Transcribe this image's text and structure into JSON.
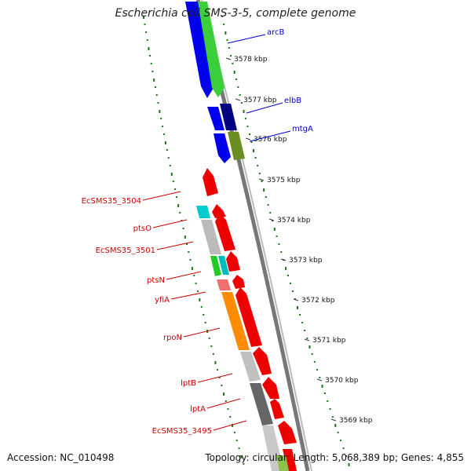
{
  "title": "Escherichia coli SMS-3-5, complete genome",
  "footer": {
    "accession": "Accession: NC_010498",
    "stats": "Topology: circular; Length: 5,068,389 bp; Genes: 4,855"
  },
  "colors": {
    "forward_cds": "#0000ff",
    "reverse_cds": "#ff0000",
    "backbone": "#888888",
    "gc_dots": "#1a7a1a",
    "label_forward": "#0000cc",
    "label_reverse": "#cc0000"
  },
  "ticks": [
    "3578 kbp",
    "3577 kbp",
    "3576 kbp",
    "3575 kbp",
    "3574 kbp",
    "3573 kbp",
    "3572 kbp",
    "3571 kbp",
    "3570 kbp",
    "3569 kbp"
  ],
  "gene_labels_forward": [
    "arcB",
    "elbB",
    "mtgA"
  ],
  "gene_labels_reverse": [
    "EcSMS35_3504",
    "ptsO",
    "EcSMS35_3501",
    "ptsN",
    "yfiA",
    "rpoN",
    "lptB",
    "lptA",
    "EcSMS35_3495"
  ]
}
